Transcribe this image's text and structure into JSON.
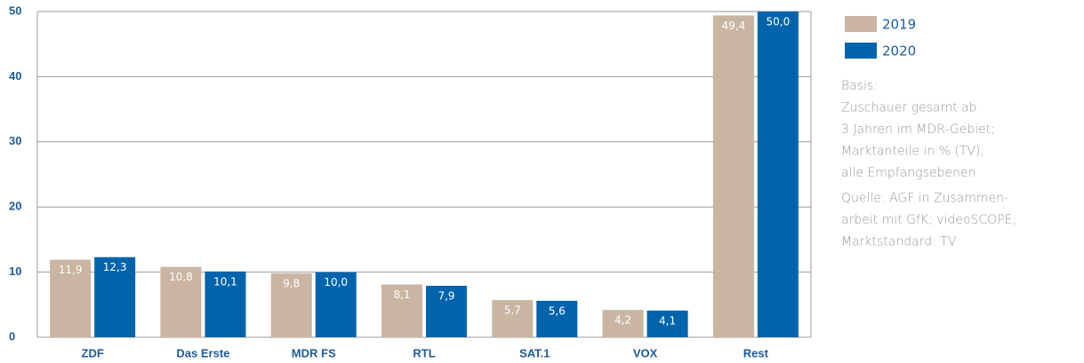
{
  "chart_data": {
    "type": "bar",
    "categories": [
      "ZDF",
      "Das Erste",
      "MDR FS",
      "RTL",
      "SAT.1",
      "VOX",
      "Rest"
    ],
    "series": [
      {
        "name": "2019",
        "color": "#c9b5a1",
        "values": [
          11.9,
          10.8,
          9.8,
          8.1,
          5.7,
          4.2,
          49.4
        ],
        "value_labels": [
          "11,9",
          "10,8",
          "9,8",
          "8,1",
          "5,7",
          "4,2",
          "49,4"
        ]
      },
      {
        "name": "2020",
        "color": "#0064ad",
        "values": [
          12.3,
          10.1,
          10.0,
          7.9,
          5.6,
          4.1,
          50.0
        ],
        "value_labels": [
          "12,3",
          "10,1",
          "10,0",
          "7,9",
          "5,6",
          "4,1",
          "50,0"
        ]
      }
    ],
    "ylim": [
      0,
      50
    ],
    "yticks": [
      0,
      10,
      20,
      30,
      40,
      50
    ],
    "grid": true,
    "notes": [
      [
        "Basis:",
        "Zuschauer gesamt ab",
        "3 Jahren im MDR-Gebiet;",
        "Marktanteile in % (TV);",
        "alle Empfangsebenen"
      ],
      [
        "Quelle: AGF in Zusammen-",
        "arbeit mit GfK; videoSCOPE;",
        "Marktstandard: TV"
      ]
    ]
  }
}
